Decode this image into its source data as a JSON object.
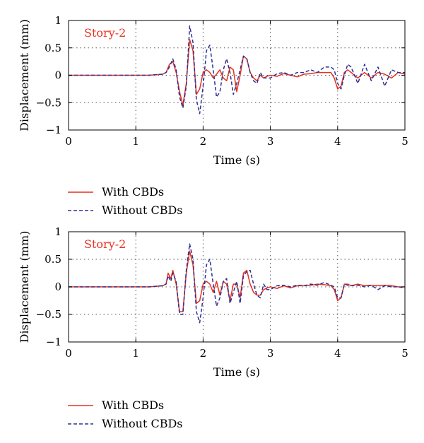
{
  "colors": {
    "with": "#e8301e",
    "without": "#2e3192",
    "grid": "#555555",
    "axis": "#000000"
  },
  "chart_data": [
    {
      "type": "line",
      "annotation": "Story-2",
      "xlabel": "Time (s)",
      "ylabel": "Displacement (mm)",
      "xlim": [
        0,
        5
      ],
      "ylim": [
        -1,
        1
      ],
      "xticks": [
        "0",
        "1",
        "2",
        "3",
        "4",
        "5"
      ],
      "yticks": [
        "1",
        "0.5",
        "0",
        "−0.5",
        "−1"
      ],
      "grid": true,
      "legend": [
        "With CBDs",
        "Without CBDs"
      ],
      "series": [
        {
          "name": "With CBDs",
          "style": "solid",
          "x": [
            0,
            1.2,
            1.4,
            1.45,
            1.5,
            1.55,
            1.6,
            1.65,
            1.7,
            1.75,
            1.8,
            1.85,
            1.9,
            1.95,
            2.0,
            2.05,
            2.1,
            2.15,
            2.2,
            2.25,
            2.3,
            2.35,
            2.4,
            2.45,
            2.5,
            2.55,
            2.6,
            2.65,
            2.7,
            2.75,
            2.8,
            2.85,
            2.9,
            2.95,
            3.0,
            3.1,
            3.2,
            3.3,
            3.4,
            3.5,
            3.6,
            3.7,
            3.8,
            3.9,
            3.95,
            4.0,
            4.05,
            4.1,
            4.15,
            4.2,
            4.3,
            4.4,
            4.5,
            4.6,
            4.7,
            4.8,
            4.9,
            5.0
          ],
          "y": [
            0,
            0,
            0.02,
            0.05,
            0.2,
            0.25,
            0.05,
            -0.3,
            -0.55,
            -0.15,
            0.65,
            0.45,
            -0.35,
            -0.25,
            0.05,
            0.1,
            0.05,
            -0.05,
            0.02,
            0.1,
            -0.05,
            -0.1,
            0.15,
            0.1,
            -0.3,
            0.0,
            0.35,
            0.3,
            0.05,
            -0.05,
            -0.1,
            0.0,
            -0.05,
            -0.02,
            0,
            -0.02,
            0.03,
            0,
            -0.03,
            0.02,
            0.03,
            0.05,
            0.05,
            0.05,
            -0.05,
            -0.25,
            -0.2,
            0.05,
            0.1,
            0.05,
            -0.05,
            0.05,
            -0.05,
            0.05,
            0.02,
            -0.05,
            0.05,
            0.02
          ]
        },
        {
          "name": "Without CBDs",
          "style": "dashed",
          "x": [
            0,
            1.2,
            1.4,
            1.45,
            1.5,
            1.55,
            1.6,
            1.65,
            1.7,
            1.75,
            1.8,
            1.85,
            1.9,
            1.95,
            2.0,
            2.05,
            2.1,
            2.15,
            2.2,
            2.25,
            2.3,
            2.35,
            2.4,
            2.45,
            2.5,
            2.55,
            2.6,
            2.65,
            2.7,
            2.75,
            2.8,
            2.85,
            2.9,
            2.95,
            3.0,
            3.1,
            3.2,
            3.3,
            3.4,
            3.5,
            3.6,
            3.7,
            3.8,
            3.9,
            3.95,
            4.0,
            4.05,
            4.1,
            4.15,
            4.2,
            4.3,
            4.4,
            4.5,
            4.6,
            4.7,
            4.8,
            4.9,
            5.0
          ],
          "y": [
            0,
            0,
            0.02,
            0.05,
            0.15,
            0.3,
            0.1,
            -0.4,
            -0.6,
            -0.2,
            0.9,
            0.6,
            -0.45,
            -0.7,
            -0.2,
            0.45,
            0.55,
            0.1,
            -0.4,
            -0.3,
            0.1,
            0.3,
            0.05,
            -0.35,
            -0.15,
            0.1,
            0.35,
            0.3,
            0.05,
            -0.1,
            -0.15,
            0.05,
            -0.05,
            -0.05,
            -0.05,
            0.03,
            0.05,
            0,
            0.05,
            0.05,
            0.1,
            0.05,
            0.15,
            0.15,
            0.1,
            -0.15,
            -0.25,
            0,
            0.2,
            0.15,
            -0.15,
            0.2,
            -0.1,
            0.15,
            -0.2,
            0.1,
            0.05,
            0.05
          ]
        }
      ]
    },
    {
      "type": "line",
      "annotation": "Story-2",
      "xlabel": "Time (s)",
      "ylabel": "Displacement (mm)",
      "xlim": [
        0,
        5
      ],
      "ylim": [
        -1,
        1
      ],
      "xticks": [
        "0",
        "1",
        "2",
        "3",
        "4",
        "5"
      ],
      "yticks": [
        "1",
        "0.5",
        "0",
        "−0.5",
        "−1"
      ],
      "grid": true,
      "legend": [
        "With CBDs",
        "Without CBDs"
      ],
      "series": [
        {
          "name": "With CBDs",
          "style": "solid",
          "x": [
            0,
            1.2,
            1.4,
            1.45,
            1.48,
            1.52,
            1.55,
            1.6,
            1.65,
            1.7,
            1.75,
            1.8,
            1.85,
            1.9,
            1.95,
            2.0,
            2.05,
            2.1,
            2.15,
            2.2,
            2.25,
            2.3,
            2.35,
            2.4,
            2.45,
            2.5,
            2.55,
            2.6,
            2.65,
            2.7,
            2.75,
            2.8,
            2.85,
            2.9,
            2.95,
            3.0,
            3.1,
            3.2,
            3.3,
            3.4,
            3.5,
            3.6,
            3.7,
            3.8,
            3.9,
            3.95,
            4.0,
            4.05,
            4.1,
            4.15,
            4.2,
            4.3,
            4.4,
            4.5,
            4.6,
            4.7,
            4.8,
            4.9,
            5.0
          ],
          "y": [
            0,
            0,
            0.02,
            0.05,
            0.25,
            0.15,
            0.3,
            0.05,
            -0.45,
            -0.45,
            0.25,
            0.65,
            0.4,
            -0.3,
            -0.25,
            0.05,
            0.1,
            0.05,
            -0.1,
            0.1,
            -0.15,
            0.1,
            0.05,
            -0.25,
            0.05,
            0.05,
            -0.2,
            0.25,
            0.3,
            0.05,
            -0.1,
            -0.15,
            -0.15,
            -0.05,
            -0.02,
            0,
            -0.03,
            0.02,
            -0.02,
            0.02,
            0.02,
            0.03,
            0.05,
            0.04,
            0.02,
            -0.05,
            -0.25,
            -0.2,
            0.05,
            0.05,
            0.02,
            0.05,
            0.02,
            0.03,
            0.02,
            0.03,
            0.02,
            0,
            0
          ]
        },
        {
          "name": "Without CBDs",
          "style": "dashed",
          "x": [
            0,
            1.2,
            1.4,
            1.45,
            1.48,
            1.52,
            1.55,
            1.6,
            1.65,
            1.7,
            1.75,
            1.8,
            1.85,
            1.9,
            1.95,
            2.0,
            2.05,
            2.1,
            2.15,
            2.2,
            2.25,
            2.3,
            2.35,
            2.4,
            2.45,
            2.5,
            2.55,
            2.6,
            2.65,
            2.7,
            2.75,
            2.8,
            2.85,
            2.9,
            2.95,
            3.0,
            3.1,
            3.2,
            3.3,
            3.4,
            3.5,
            3.6,
            3.7,
            3.8,
            3.9,
            3.95,
            4.0,
            4.05,
            4.1,
            4.15,
            4.2,
            4.3,
            4.4,
            4.5,
            4.6,
            4.7,
            4.8,
            4.9,
            5.0
          ],
          "y": [
            0,
            0,
            0.02,
            0.05,
            0.2,
            0.1,
            0.25,
            0.1,
            -0.5,
            -0.5,
            0.3,
            0.78,
            0.5,
            -0.45,
            -0.65,
            -0.2,
            0.4,
            0.5,
            0.05,
            -0.35,
            -0.2,
            0.1,
            0.15,
            -0.3,
            -0.1,
            0.1,
            -0.3,
            0.2,
            0.28,
            0.3,
            0.05,
            -0.15,
            -0.2,
            0.05,
            -0.05,
            -0.05,
            0.02,
            0.03,
            0,
            0.03,
            0.02,
            0.05,
            0.03,
            0.08,
            0.03,
            0,
            -0.2,
            -0.2,
            0.05,
            0.03,
            0.02,
            0.03,
            0,
            0.03,
            -0.05,
            0.02,
            0,
            0,
            -0.02
          ]
        }
      ]
    }
  ]
}
